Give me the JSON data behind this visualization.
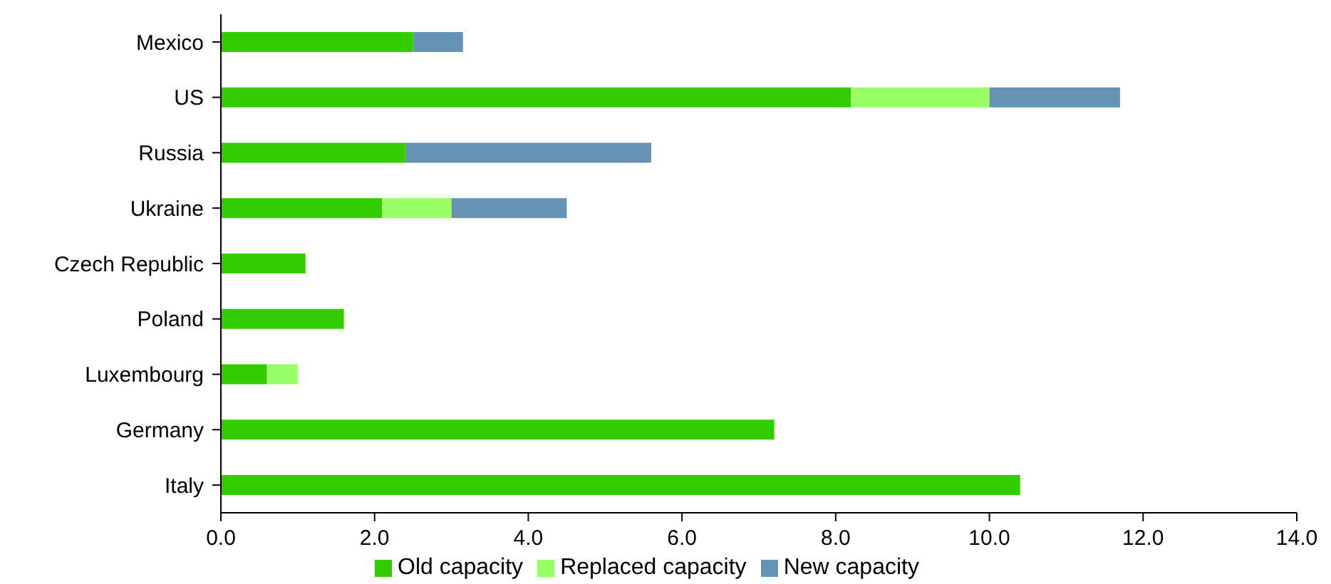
{
  "chart_data": {
    "type": "bar",
    "orientation": "horizontal",
    "stacked": true,
    "categories": [
      "Mexico",
      "US",
      "Russia",
      "Ukraine",
      "Czech Republic",
      "Poland",
      "Luxembourg",
      "Germany",
      "Italy"
    ],
    "series": [
      {
        "name": "Old capacity",
        "color": "#33cc00",
        "values": [
          2.5,
          8.2,
          2.4,
          2.1,
          1.1,
          1.6,
          0.6,
          7.2,
          10.4
        ]
      },
      {
        "name": "Replaced capacity",
        "color": "#99ff66",
        "values": [
          null,
          1.8,
          null,
          0.9,
          null,
          null,
          0.4,
          null,
          null
        ]
      },
      {
        "name": "New capacity",
        "color": "#6693b3",
        "values": [
          0.65,
          1.7,
          3.2,
          1.5,
          null,
          null,
          null,
          null,
          null
        ]
      }
    ],
    "xlim": [
      0,
      14
    ],
    "xticks": [
      {
        "value": 0,
        "label": "0.0"
      },
      {
        "value": 2,
        "label": "2.0"
      },
      {
        "value": 4,
        "label": "4.0"
      },
      {
        "value": 6,
        "label": "6.0"
      },
      {
        "value": 8,
        "label": "8.0"
      },
      {
        "value": 10,
        "label": "10.0"
      },
      {
        "value": 12,
        "label": "12.0"
      },
      {
        "value": 14,
        "label": "14.0"
      }
    ],
    "grid": false,
    "legend": "bottom"
  }
}
